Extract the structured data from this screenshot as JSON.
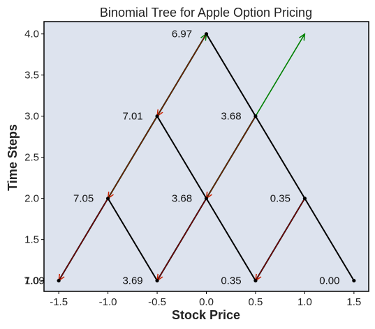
{
  "chart_data": {
    "type": "tree",
    "title": "Binomial Tree for Apple Option Pricing",
    "xlabel": "Stock Price",
    "ylabel": "Time Steps",
    "xlim": [
      -1.65,
      1.65
    ],
    "ylim": [
      0.87,
      4.15
    ],
    "xticks": [
      "-1.5",
      "-1.0",
      "-0.5",
      "0.0",
      "0.5",
      "1.0",
      "1.5"
    ],
    "xtick_values": [
      -1.5,
      -1.0,
      -0.5,
      0.0,
      0.5,
      1.0,
      1.5
    ],
    "yticks": [
      "1.0",
      "1.5",
      "2.0",
      "2.5",
      "3.0",
      "3.5",
      "4.0"
    ],
    "ytick_values": [
      1.0,
      1.5,
      2.0,
      2.5,
      3.0,
      3.5,
      4.0
    ],
    "grid": false,
    "background_color": "#dde3ee",
    "nodes": [
      {
        "x": 0.0,
        "y": 4,
        "label": "6.97"
      },
      {
        "x": -0.5,
        "y": 3,
        "label": "7.01"
      },
      {
        "x": 0.5,
        "y": 3,
        "label": "3.68"
      },
      {
        "x": -1.0,
        "y": 2,
        "label": "7.05"
      },
      {
        "x": 0.0,
        "y": 2,
        "label": "3.68"
      },
      {
        "x": 1.0,
        "y": 2,
        "label": "0.35"
      },
      {
        "x": -1.5,
        "y": 1,
        "label": "7.09"
      },
      {
        "x": -0.5,
        "y": 1,
        "label": "3.69"
      },
      {
        "x": 0.5,
        "y": 1,
        "label": "0.35"
      },
      {
        "x": 1.5,
        "y": 1,
        "label": "0.00"
      }
    ],
    "edges": [
      [
        0.0,
        4,
        -0.5,
        3
      ],
      [
        0.0,
        4,
        0.5,
        3
      ],
      [
        -0.5,
        3,
        -1.0,
        2
      ],
      [
        -0.5,
        3,
        0.0,
        2
      ],
      [
        0.5,
        3,
        0.0,
        2
      ],
      [
        0.5,
        3,
        1.0,
        2
      ],
      [
        -1.0,
        2,
        -1.5,
        1
      ],
      [
        -1.0,
        2,
        -0.5,
        1
      ],
      [
        0.0,
        2,
        -0.5,
        1
      ],
      [
        0.0,
        2,
        0.5,
        1
      ],
      [
        1.0,
        2,
        0.5,
        1
      ],
      [
        1.0,
        2,
        1.5,
        1
      ]
    ],
    "up_arrows": [
      [
        -1.0,
        2,
        0.0,
        4
      ],
      [
        0.0,
        2,
        1.0,
        4
      ]
    ],
    "down_arrows": [
      [
        0.0,
        4,
        -0.5,
        3
      ],
      [
        -0.5,
        3,
        -1.0,
        2
      ],
      [
        -1.0,
        2,
        -1.5,
        1
      ],
      [
        0.0,
        2,
        -0.5,
        1
      ],
      [
        0.5,
        3,
        0.0,
        2
      ],
      [
        1.0,
        2,
        0.5,
        1
      ]
    ],
    "colors": {
      "edge": "#000000",
      "up_arrow": "#008000",
      "down_arrow": "#cc2200",
      "down_arrow_overlay": "#8b0000"
    }
  }
}
